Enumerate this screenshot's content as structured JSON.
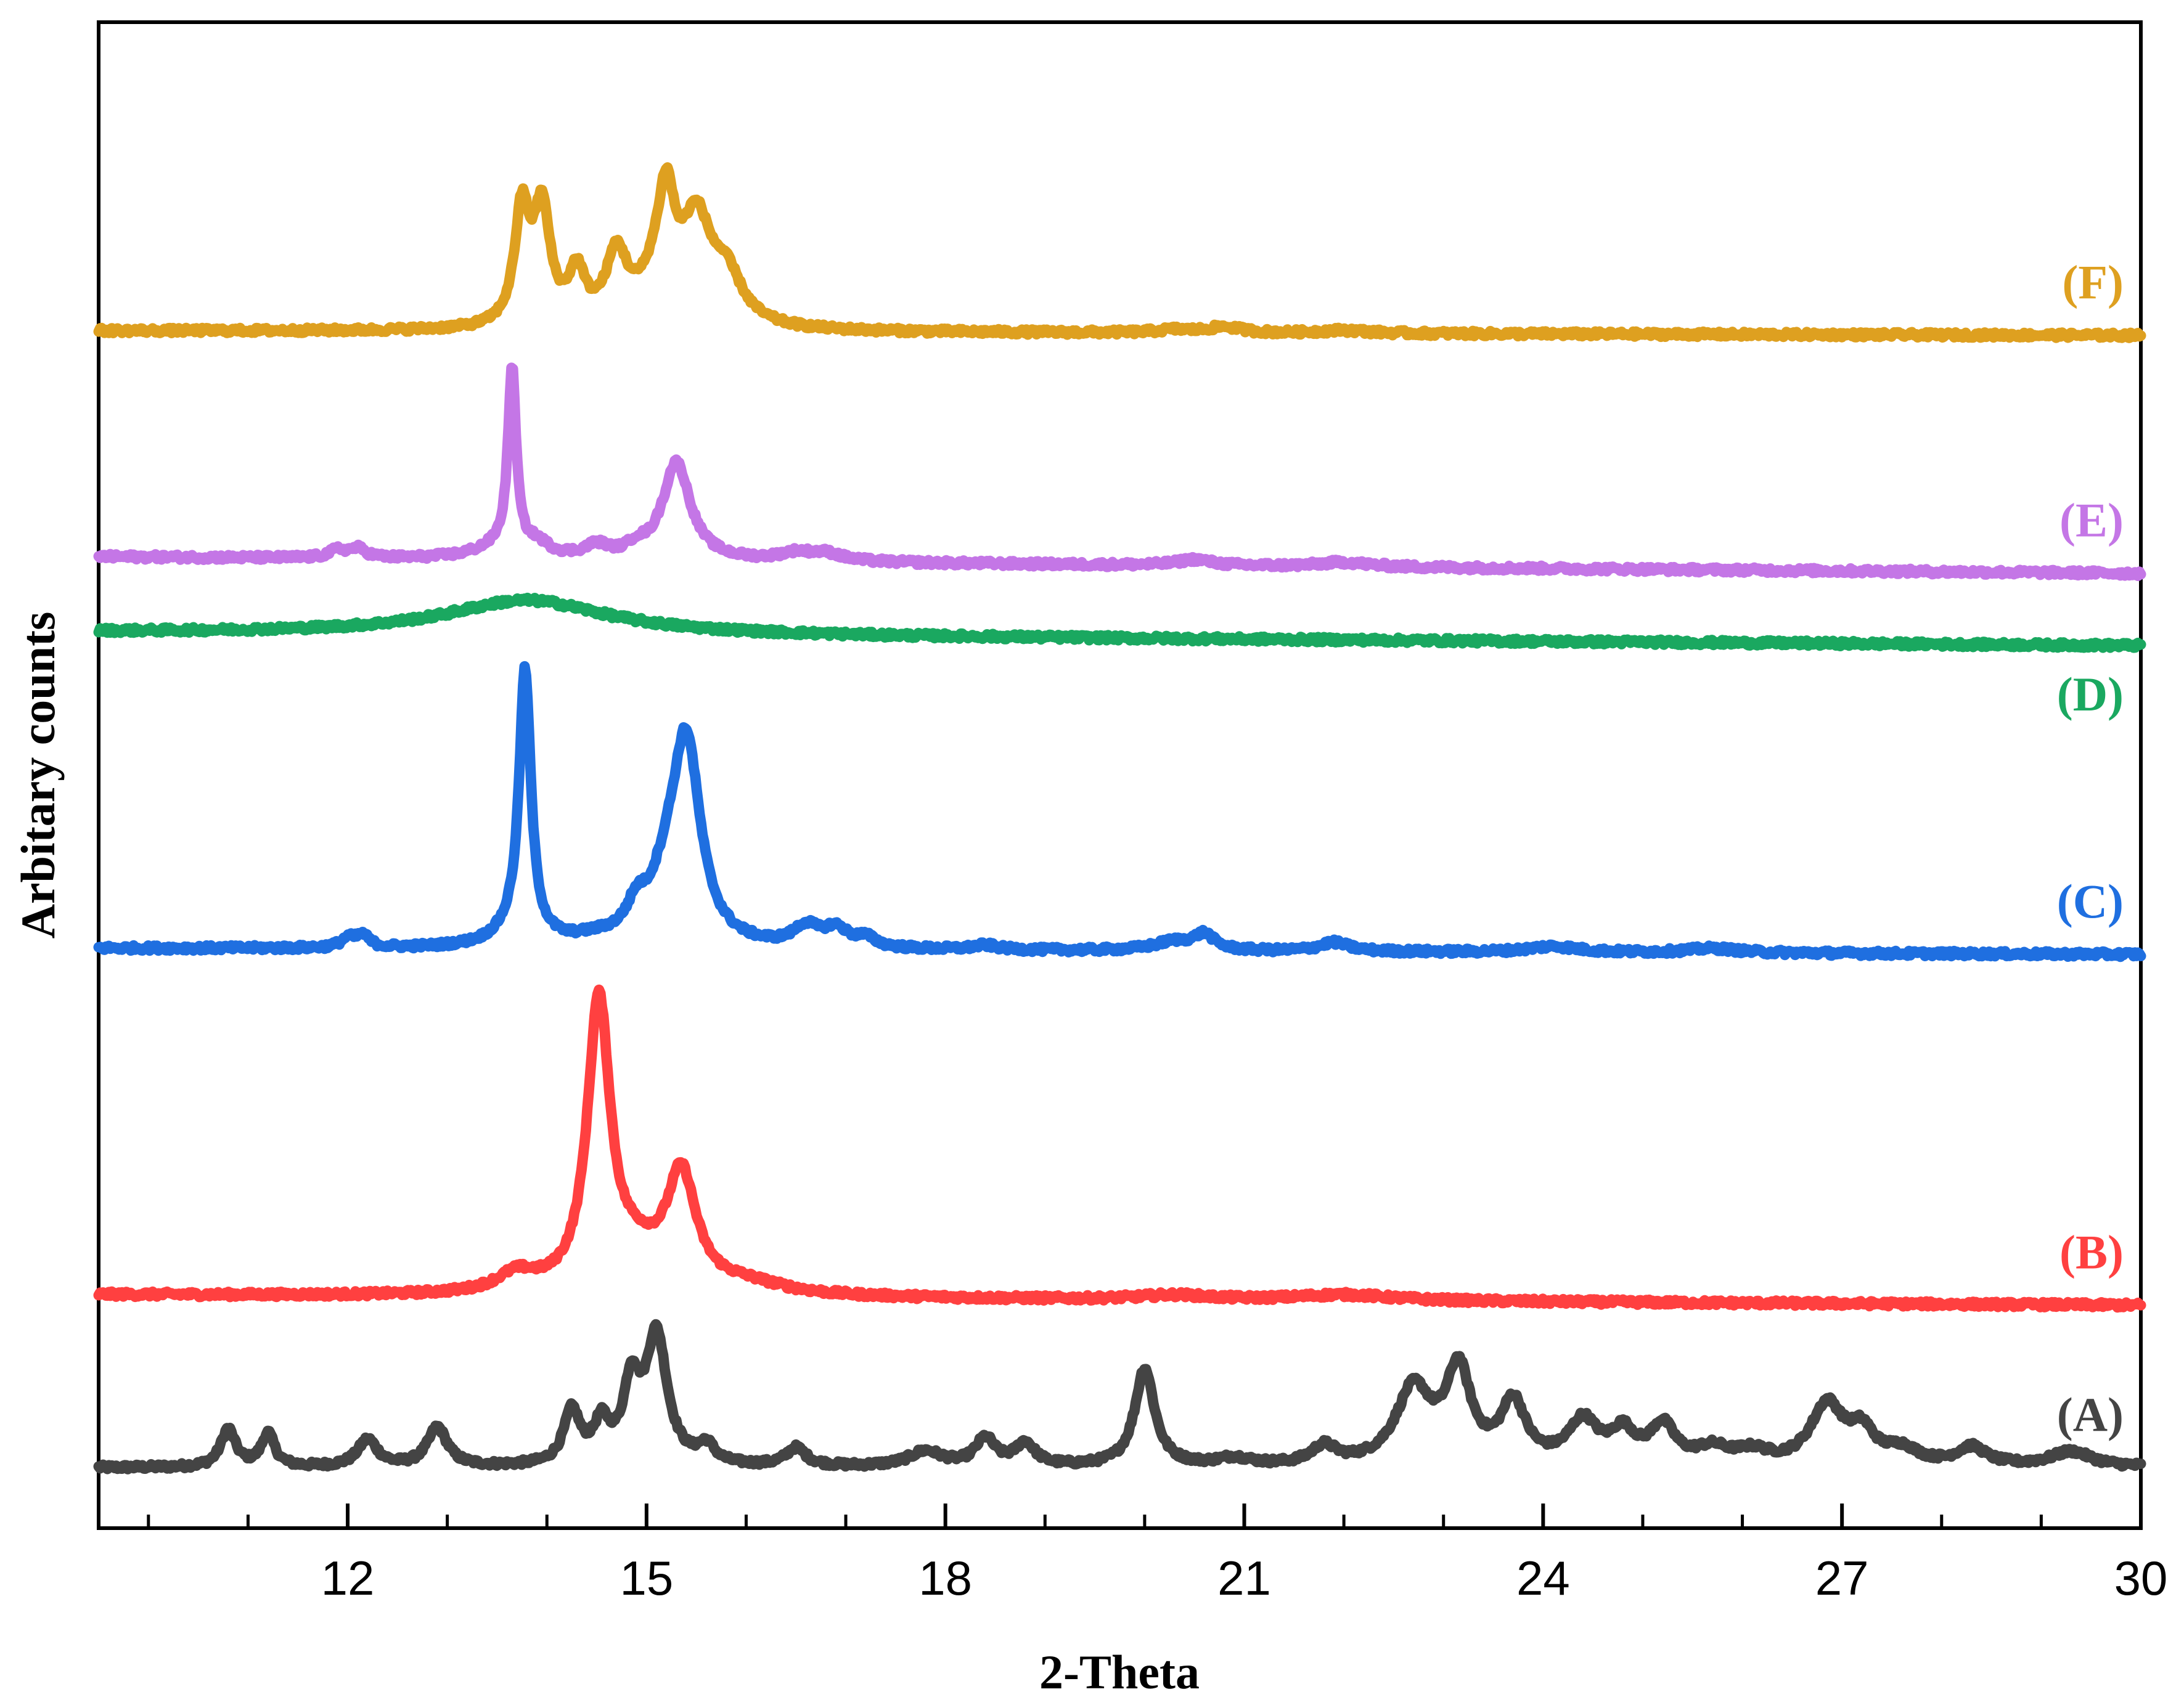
{
  "chart_data": {
    "type": "line",
    "xlabel": "2-Theta",
    "ylabel": "Arbitary counts",
    "xlim": [
      9.5,
      30
    ],
    "ylim": [
      0,
      100
    ],
    "x_ticks": [
      12,
      15,
      18,
      21,
      24,
      27,
      30
    ],
    "x_minor_step": 1,
    "y_ticks_shown": false,
    "grid": false,
    "legend": "labels at right end of each trace",
    "series": [
      {
        "name": "(A)",
        "color": "#444444",
        "baseline": 4,
        "end_offset": 0,
        "peaks": [
          [
            10.8,
            2.5,
            0.09
          ],
          [
            11.2,
            2.2,
            0.08
          ],
          [
            12.2,
            1.8,
            0.12
          ],
          [
            12.9,
            2.6,
            0.12
          ],
          [
            14.25,
            3.5,
            0.1
          ],
          [
            14.55,
            2.5,
            0.1
          ],
          [
            14.85,
            5,
            0.1
          ],
          [
            15.1,
            8.5,
            0.13
          ],
          [
            15.6,
            1.2,
            0.1
          ],
          [
            16.5,
            1.2,
            0.12
          ],
          [
            17.8,
            1,
            0.2
          ],
          [
            18.4,
            1.8,
            0.12
          ],
          [
            18.8,
            1.5,
            0.12
          ],
          [
            20.0,
            6.5,
            0.12
          ],
          [
            20.9,
            0.5,
            0.2
          ],
          [
            21.8,
            1.2,
            0.15
          ],
          [
            22.7,
            5,
            0.22
          ],
          [
            23.15,
            6,
            0.15
          ],
          [
            23.7,
            4,
            0.15
          ],
          [
            24.4,
            2.8,
            0.18
          ],
          [
            24.8,
            2,
            0.15
          ],
          [
            25.2,
            2.5,
            0.15
          ],
          [
            25.7,
            1,
            0.2
          ],
          [
            26.1,
            0.8,
            0.2
          ],
          [
            26.85,
            4,
            0.2
          ],
          [
            27.2,
            2,
            0.15
          ],
          [
            27.6,
            1,
            0.2
          ],
          [
            28.3,
            1.2,
            0.18
          ],
          [
            29.3,
            1,
            0.25
          ]
        ]
      },
      {
        "name": "(B)",
        "color": "#ff4040",
        "baseline": 15.5,
        "end_offset": -0.7,
        "peaks": [
          [
            13.7,
            1.2,
            0.25
          ],
          [
            14.52,
            19,
            0.14
          ],
          [
            14.9,
            2,
            0.3
          ],
          [
            15.35,
            7.5,
            0.18
          ],
          [
            16.0,
            0.7,
            0.5
          ],
          [
            20.3,
            0.3,
            0.4
          ],
          [
            22.0,
            0.4,
            0.6
          ]
        ]
      },
      {
        "name": "(C)",
        "color": "#1f6fe0",
        "baseline": 38.5,
        "end_offset": -0.4,
        "peaks": [
          [
            12.0,
            0.6,
            0.08
          ],
          [
            12.15,
            0.8,
            0.08
          ],
          [
            13.7,
            1,
            0.25
          ],
          [
            13.78,
            17.5,
            0.07
          ],
          [
            14.5,
            0.4,
            0.3
          ],
          [
            14.9,
            1.8,
            0.12
          ],
          [
            15.2,
            3,
            0.2
          ],
          [
            15.4,
            13,
            0.17
          ],
          [
            16.6,
            1.3,
            0.15
          ],
          [
            16.9,
            1.2,
            0.15
          ],
          [
            17.2,
            0.6,
            0.12
          ],
          [
            18.4,
            0.3,
            0.15
          ],
          [
            20.3,
            0.6,
            0.25
          ],
          [
            20.6,
            1,
            0.12
          ],
          [
            21.9,
            0.6,
            0.18
          ],
          [
            24.1,
            0.4,
            0.3
          ],
          [
            25.7,
            0.3,
            0.3
          ]
        ]
      },
      {
        "name": "(D)",
        "color": "#1aa860",
        "baseline": 59.5,
        "end_offset": -0.9,
        "peaks": [
          [
            13.8,
            2.3,
            1.0
          ]
        ]
      },
      {
        "name": "(E)",
        "color": "#c476e6",
        "baseline": 64.5,
        "end_offset": -1.1,
        "peaks": [
          [
            11.9,
            0.5,
            0.1
          ],
          [
            12.1,
            0.6,
            0.1
          ],
          [
            13.5,
            0.7,
            0.3
          ],
          [
            13.65,
            12,
            0.05
          ],
          [
            13.9,
            0.8,
            0.15
          ],
          [
            14.5,
            0.8,
            0.15
          ],
          [
            14.9,
            0.6,
            0.1
          ],
          [
            15.3,
            6.5,
            0.17
          ],
          [
            16.5,
            0.5,
            0.2
          ],
          [
            16.8,
            0.5,
            0.2
          ],
          [
            20.5,
            0.4,
            0.2
          ],
          [
            22.0,
            0.3,
            0.3
          ]
        ]
      },
      {
        "name": "(F)",
        "color": "#dea020",
        "baseline": 79.5,
        "end_offset": -0.3,
        "peaks": [
          [
            13.75,
            7.5,
            0.09
          ],
          [
            13.95,
            7.5,
            0.1
          ],
          [
            14.3,
            3.3,
            0.1
          ],
          [
            14.7,
            4.5,
            0.13
          ],
          [
            15.1,
            2.5,
            0.2
          ],
          [
            15.2,
            6.5,
            0.1
          ],
          [
            15.5,
            6.5,
            0.18
          ],
          [
            15.8,
            3,
            0.2
          ],
          [
            20.3,
            0.2,
            0.2
          ],
          [
            20.8,
            0.4,
            0.2
          ],
          [
            22.0,
            0.2,
            0.3
          ]
        ]
      }
    ]
  }
}
